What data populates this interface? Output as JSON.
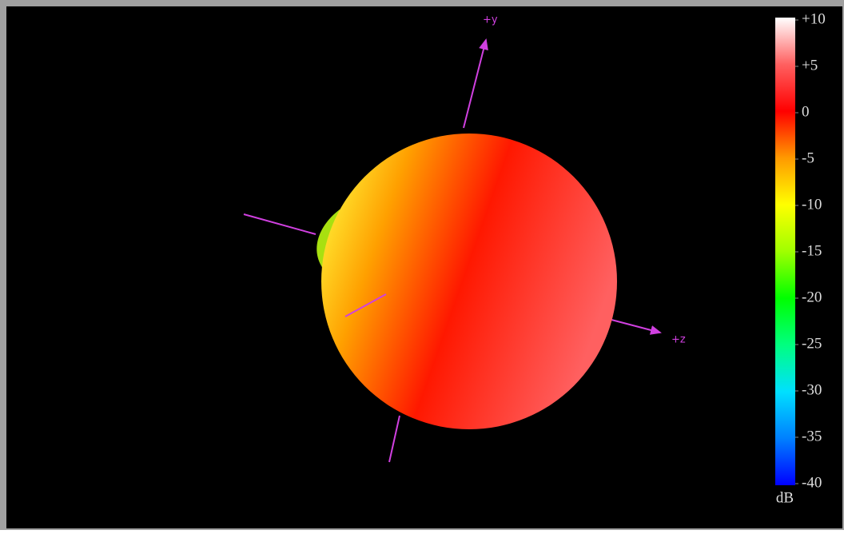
{
  "chart_data": {
    "type": "radiation-pattern",
    "axis_labels": [
      "+y",
      "+z"
    ],
    "colorbar": {
      "label": "dB",
      "lim": [
        -40,
        10
      ],
      "ticks": [
        {
          "value": 10,
          "label": "+10"
        },
        {
          "value": 5,
          "label": "+5"
        },
        0,
        -5,
        -10,
        -15,
        -20,
        -25,
        -30,
        -35,
        -40
      ],
      "colors": [
        "#0000ff",
        "#0080ff",
        "#00e0ff",
        "#00ff80",
        "#00ff00",
        "#a0ff00",
        "#ffff00",
        "#ff9900",
        "#ff0000",
        "#ff6060",
        "#ffffff"
      ]
    }
  }
}
